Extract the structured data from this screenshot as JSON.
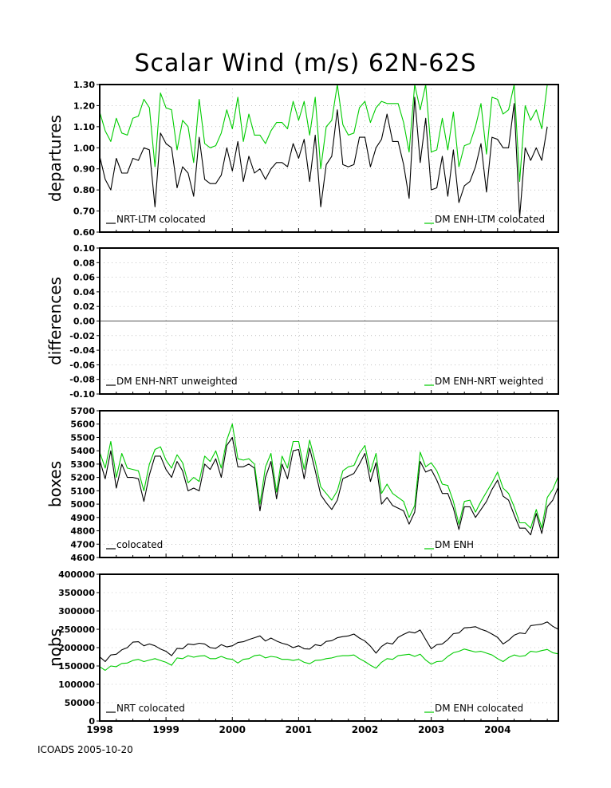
{
  "title": "Scalar Wind (m/s) 62N-62S",
  "footer": "ICOADS 2005-10-20",
  "colors": {
    "black_series": "#000000",
    "green_series": "#00cc00",
    "grid": "#999999"
  },
  "x_axis": {
    "tick_labels": [
      "1998",
      "1999",
      "2000",
      "2001",
      "2002",
      "2003",
      "2004"
    ],
    "range": [
      1998.0,
      2004.917
    ]
  },
  "chart_data": [
    {
      "type": "line",
      "ylabel": "departures",
      "ylim": [
        0.6,
        1.3
      ],
      "y_ticks": [
        "0.60",
        "0.70",
        "0.80",
        "0.90",
        "1.00",
        "1.10",
        "1.20",
        "1.30"
      ],
      "grid": true,
      "series": [
        {
          "name": "NRT-LTM colocated",
          "color": "#000000",
          "values": [
            0.96,
            0.85,
            0.8,
            0.95,
            0.88,
            0.88,
            0.95,
            0.94,
            1.0,
            0.99,
            0.72,
            1.07,
            1.02,
            1.0,
            0.81,
            0.91,
            0.88,
            0.77,
            1.05,
            0.85,
            0.83,
            0.83,
            0.87,
            1.0,
            0.89,
            1.03,
            0.84,
            0.96,
            0.88,
            0.9,
            0.85,
            0.9,
            0.93,
            0.93,
            0.91,
            1.02,
            0.95,
            1.04,
            0.84,
            1.06,
            0.72,
            0.92,
            0.96,
            1.18,
            0.92,
            0.91,
            0.92,
            1.05,
            1.05,
            0.91,
            1.0,
            1.04,
            1.16,
            1.03,
            1.03,
            0.92,
            0.76,
            1.24,
            0.93,
            1.14,
            0.8,
            0.81,
            0.96,
            0.77,
            0.99,
            0.74,
            0.82,
            0.84,
            0.91,
            1.02,
            0.79,
            1.05,
            1.04,
            1.0,
            1.0,
            1.21,
            0.67,
            1.0,
            0.94,
            1.0,
            0.94,
            1.1
          ]
        },
        {
          "name": "DM ENH-LTM colocated",
          "color": "#00cc00",
          "values": [
            1.17,
            1.08,
            1.03,
            1.14,
            1.07,
            1.06,
            1.14,
            1.15,
            1.23,
            1.19,
            0.91,
            1.26,
            1.19,
            1.18,
            0.99,
            1.13,
            1.1,
            0.93,
            1.23,
            1.02,
            1.0,
            1.01,
            1.07,
            1.18,
            1.09,
            1.24,
            1.03,
            1.16,
            1.06,
            1.06,
            1.02,
            1.08,
            1.12,
            1.12,
            1.09,
            1.22,
            1.13,
            1.22,
            1.06,
            1.24,
            0.9,
            1.1,
            1.13,
            1.31,
            1.11,
            1.06,
            1.07,
            1.19,
            1.22,
            1.12,
            1.19,
            1.22,
            1.21,
            1.21,
            1.21,
            1.12,
            0.98,
            1.31,
            1.18,
            1.31,
            0.98,
            0.99,
            1.14,
            0.99,
            1.17,
            0.91,
            1.01,
            1.02,
            1.1,
            1.21,
            0.97,
            1.24,
            1.23,
            1.16,
            1.18,
            1.32,
            0.84,
            1.2,
            1.13,
            1.18,
            1.09,
            1.3
          ]
        }
      ]
    },
    {
      "type": "line",
      "ylabel": "differences",
      "ylim": [
        -0.1,
        0.1
      ],
      "y_ticks": [
        "0.10",
        "0.08",
        "0.06",
        "0.04",
        "0.02",
        "0.00",
        "-0.02",
        "-0.04",
        "-0.06",
        "-0.08",
        "-0.10"
      ],
      "grid": true,
      "series": [
        {
          "name": "DM ENH-NRT unweighted",
          "color": "#000000",
          "values": "constant 0.00"
        },
        {
          "name": "DM ENH-NRT weighted",
          "color": "#00cc00",
          "values": "constant 0.00"
        }
      ]
    },
    {
      "type": "line",
      "ylabel": "boxes",
      "ylim": [
        4600,
        5700
      ],
      "y_ticks": [
        "5700",
        "5600",
        "5500",
        "5400",
        "5300",
        "5200",
        "5100",
        "5000",
        "4900",
        "4800",
        "4700",
        "4600"
      ],
      "grid": true,
      "series": [
        {
          "name": "colocated",
          "color": "#000000",
          "values": [
            5330,
            5190,
            5400,
            5120,
            5300,
            5200,
            5200,
            5190,
            5020,
            5220,
            5360,
            5360,
            5260,
            5200,
            5320,
            5250,
            5100,
            5120,
            5100,
            5300,
            5260,
            5340,
            5200,
            5440,
            5500,
            5280,
            5280,
            5300,
            5270,
            4950,
            5200,
            5320,
            5040,
            5300,
            5190,
            5400,
            5410,
            5190,
            5420,
            5250,
            5070,
            5010,
            4960,
            5030,
            5190,
            5210,
            5230,
            5300,
            5380,
            5170,
            5310,
            5000,
            5050,
            4990,
            4970,
            4950,
            4850,
            4940,
            5320,
            5240,
            5260,
            5180,
            5080,
            5080,
            4970,
            4810,
            4980,
            4980,
            4900,
            4960,
            5020,
            5110,
            5180,
            5060,
            5030,
            4920,
            4820,
            4820,
            4770,
            4930,
            4780,
            4980,
            5030,
            5130
          ]
        },
        {
          "name": "DM ENH",
          "color": "#00cc00",
          "values": [
            5390,
            5270,
            5470,
            5200,
            5380,
            5270,
            5260,
            5250,
            5100,
            5300,
            5410,
            5430,
            5330,
            5270,
            5370,
            5310,
            5160,
            5200,
            5170,
            5360,
            5320,
            5400,
            5270,
            5480,
            5600,
            5340,
            5330,
            5340,
            5300,
            5000,
            5280,
            5380,
            5090,
            5360,
            5270,
            5470,
            5470,
            5260,
            5480,
            5320,
            5130,
            5080,
            5030,
            5100,
            5250,
            5280,
            5290,
            5380,
            5440,
            5240,
            5380,
            5080,
            5150,
            5080,
            5050,
            5020,
            4900,
            4990,
            5390,
            5280,
            5310,
            5250,
            5150,
            5140,
            5020,
            4850,
            5020,
            5030,
            4940,
            5020,
            5090,
            5160,
            5240,
            5120,
            5080,
            4980,
            4860,
            4860,
            4820,
            4960,
            4820,
            5050,
            5110,
            5210
          ]
        }
      ]
    },
    {
      "type": "line",
      "ylabel": "nobs",
      "ylim": [
        0,
        400000
      ],
      "y_ticks": [
        "400000",
        "350000",
        "300000",
        "250000",
        "200000",
        "150000",
        "100000",
        "50000",
        "0"
      ],
      "grid": true,
      "series": [
        {
          "name": "NRT colocated",
          "color": "#000000",
          "values": [
            175000,
            162000,
            180000,
            182000,
            194000,
            200000,
            215000,
            216000,
            205000,
            210000,
            205000,
            196000,
            190000,
            178000,
            198000,
            197000,
            210000,
            208000,
            212000,
            210000,
            200000,
            198000,
            208000,
            202000,
            205000,
            214000,
            216000,
            222000,
            227000,
            232000,
            218000,
            226000,
            218000,
            212000,
            208000,
            200000,
            205000,
            197000,
            196000,
            208000,
            205000,
            217000,
            219000,
            227000,
            230000,
            232000,
            237000,
            226000,
            218000,
            204000,
            185000,
            203000,
            213000,
            210000,
            228000,
            236000,
            243000,
            240000,
            248000,
            222000,
            197000,
            208000,
            210000,
            222000,
            238000,
            240000,
            254000,
            255000,
            257000,
            250000,
            245000,
            237000,
            228000,
            210000,
            220000,
            234000,
            240000,
            238000,
            260000,
            262000,
            264000,
            270000,
            258000,
            250000
          ]
        },
        {
          "name": "DM ENH colocated",
          "color": "#00cc00",
          "values": [
            148000,
            138000,
            150000,
            148000,
            157000,
            158000,
            165000,
            168000,
            162000,
            166000,
            170000,
            165000,
            160000,
            152000,
            172000,
            170000,
            178000,
            174000,
            177000,
            178000,
            170000,
            170000,
            176000,
            170000,
            168000,
            158000,
            168000,
            170000,
            178000,
            180000,
            172000,
            176000,
            174000,
            168000,
            168000,
            165000,
            168000,
            160000,
            156000,
            165000,
            166000,
            170000,
            172000,
            176000,
            178000,
            178000,
            180000,
            170000,
            162000,
            152000,
            144000,
            160000,
            170000,
            168000,
            178000,
            180000,
            182000,
            176000,
            182000,
            166000,
            155000,
            162000,
            163000,
            176000,
            186000,
            190000,
            196000,
            192000,
            188000,
            190000,
            185000,
            180000,
            170000,
            162000,
            173000,
            180000,
            176000,
            178000,
            190000,
            188000,
            192000,
            195000,
            186000,
            183000
          ]
        }
      ]
    }
  ]
}
